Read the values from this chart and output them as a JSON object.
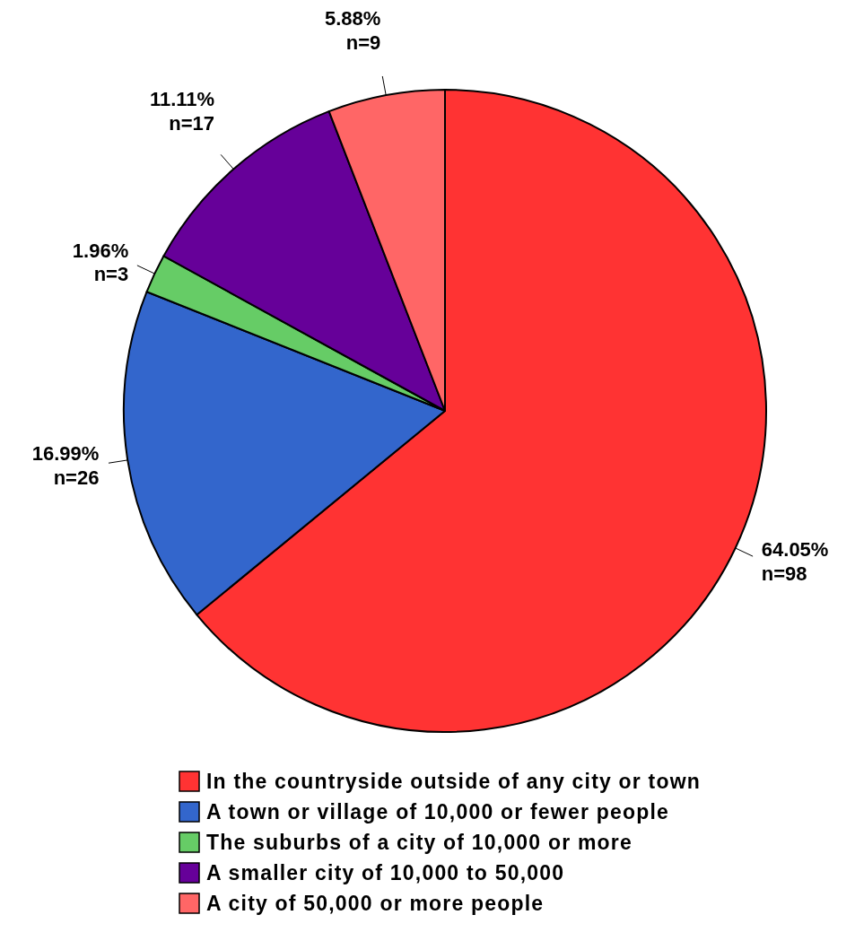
{
  "chart_data": {
    "type": "pie",
    "categories": [
      "In the countryside outside of any city or town",
      "A town or village of 10,000 or fewer people",
      "The suburbs of a city of 10,000 or more",
      "A smaller city of 10,000 to 50,000",
      "A city of 50,000 or more people"
    ],
    "values": [
      98,
      26,
      3,
      17,
      9
    ],
    "value_labels": [
      "64.05%\nn=98",
      "16.99%\nn=26",
      "1.96%\nn=3",
      "11.11%\nn=17",
      "5.88%\nn=9"
    ],
    "colors": [
      "#ff3333",
      "#3366cc",
      "#66cc66",
      "#660099",
      "#ff6666"
    ],
    "legend": "bottom"
  }
}
